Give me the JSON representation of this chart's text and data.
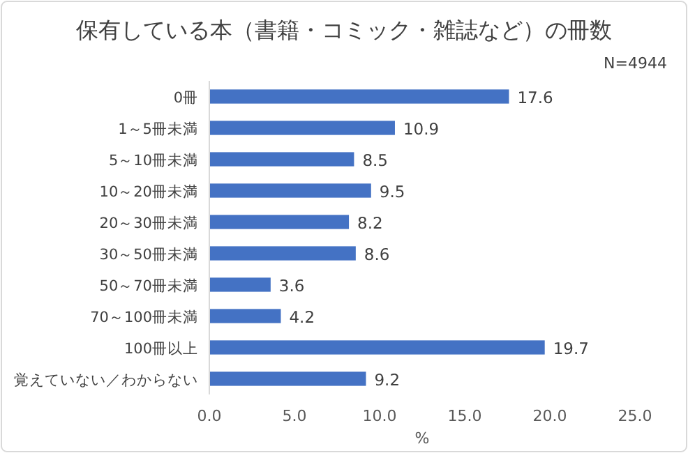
{
  "chart_data": {
    "type": "bar",
    "orientation": "horizontal",
    "title": "保有している本（書籍・コミック・雑誌など）の冊数",
    "annotations": [
      "N=4944"
    ],
    "categories": [
      "0冊",
      "1～5冊未満",
      "5～10冊未満",
      "10～20冊未満",
      "20～30冊未満",
      "30～50冊未満",
      "50～70冊未満",
      "70～100冊未満",
      "100冊以上",
      "覚えていない／わからない"
    ],
    "values": [
      17.6,
      10.9,
      8.5,
      9.5,
      8.2,
      8.6,
      3.6,
      4.2,
      19.7,
      9.2
    ],
    "color": "#4472c4",
    "data_labels": true,
    "xlabel": "%",
    "xlim": [
      0,
      25
    ],
    "xticks": [
      {
        "value": 0,
        "label": "0.0"
      },
      {
        "value": 5,
        "label": "5.0"
      },
      {
        "value": 10,
        "label": "10.0"
      },
      {
        "value": 15,
        "label": "15.0"
      },
      {
        "value": 20,
        "label": "20.0"
      },
      {
        "value": 25,
        "label": "25.0"
      }
    ]
  }
}
